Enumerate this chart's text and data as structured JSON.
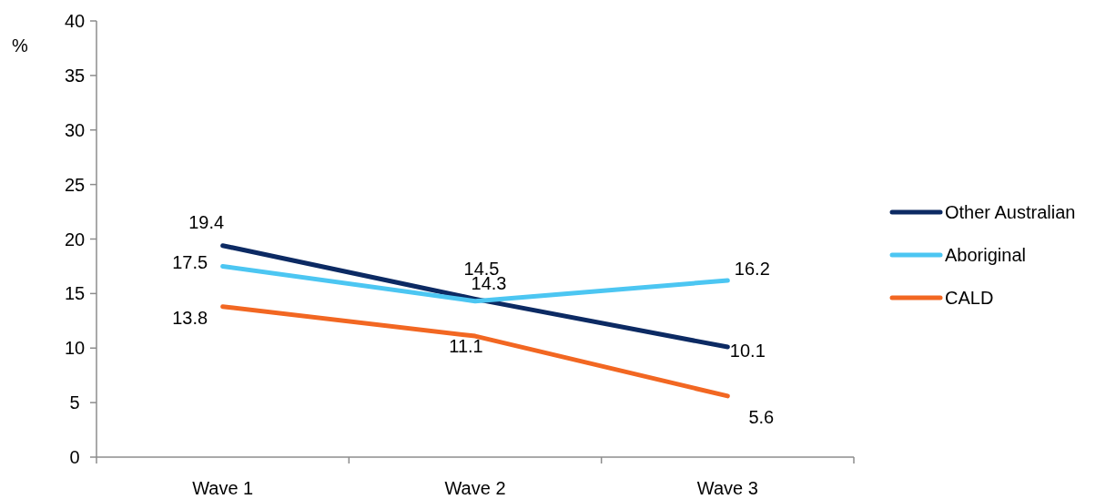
{
  "chart_data": {
    "type": "line",
    "ylabel": "%",
    "categories": [
      "Wave 1",
      "Wave 2",
      "Wave 3"
    ],
    "series": [
      {
        "name": "Other Australian",
        "color": "#0c2a63",
        "values": [
          19.4,
          14.5,
          10.1
        ]
      },
      {
        "name": "Aboriginal",
        "color": "#4cc6f2",
        "values": [
          17.5,
          14.3,
          16.2
        ]
      },
      {
        "name": "CALD",
        "color": "#f26722",
        "values": [
          13.8,
          11.1,
          5.6
        ]
      }
    ],
    "ylim": [
      0,
      40
    ],
    "yticks": [
      0,
      5,
      10,
      15,
      20,
      25,
      30,
      35,
      40
    ],
    "legend": "right",
    "data_labels": true,
    "line_style": "solid"
  }
}
